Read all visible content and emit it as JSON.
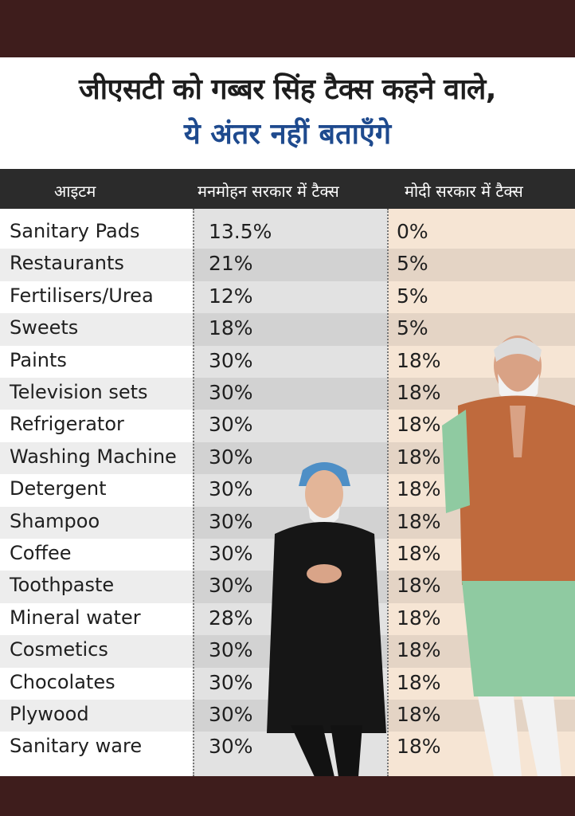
{
  "headline": {
    "line1": "जीएसटी को गब्बर सिंह टैक्स कहने वाले,",
    "line2": "ये अंतर नहीं बताएँगे"
  },
  "columns": [
    "आइटम",
    "मनमोहन सरकार में टैक्स",
    "मोदी सरकार में टैक्स"
  ],
  "rows": [
    {
      "item": "Sanitary Pads",
      "manmohan": "13.5%",
      "modi": "0%"
    },
    {
      "item": "Restaurants",
      "manmohan": "21%",
      "modi": "5%"
    },
    {
      "item": "Fertilisers/Urea",
      "manmohan": "12%",
      "modi": "5%"
    },
    {
      "item": "Sweets",
      "manmohan": "18%",
      "modi": "5%"
    },
    {
      "item": "Paints",
      "manmohan": "30%",
      "modi": "18%"
    },
    {
      "item": "Television sets",
      "manmohan": "30%",
      "modi": "18%"
    },
    {
      "item": "Refrigerator",
      "manmohan": "30%",
      "modi": "18%"
    },
    {
      "item": "Washing Machine",
      "manmohan": "30%",
      "modi": "18%"
    },
    {
      "item": "Detergent",
      "manmohan": "30%",
      "modi": "18%"
    },
    {
      "item": "Shampoo",
      "manmohan": "30%",
      "modi": "18%"
    },
    {
      "item": "Coffee",
      "manmohan": "30%",
      "modi": "18%"
    },
    {
      "item": "Toothpaste",
      "manmohan": "30%",
      "modi": "18%"
    },
    {
      "item": "Mineral water",
      "manmohan": "28%",
      "modi": "18%"
    },
    {
      "item": "Cosmetics",
      "manmohan": "30%",
      "modi": "18%"
    },
    {
      "item": "Chocolates",
      "manmohan": "30%",
      "modi": "18%"
    },
    {
      "item": "Plywood",
      "manmohan": "30%",
      "modi": "18%"
    },
    {
      "item": "Sanitary ware",
      "manmohan": "30%",
      "modi": "18%"
    }
  ],
  "colors": {
    "band": "#3e1d1c",
    "headline_accent": "#1e4a8e",
    "header_row": "#2b2b2b",
    "mid_column": "#e2e2e2",
    "right_column": "#f6e5d4"
  }
}
